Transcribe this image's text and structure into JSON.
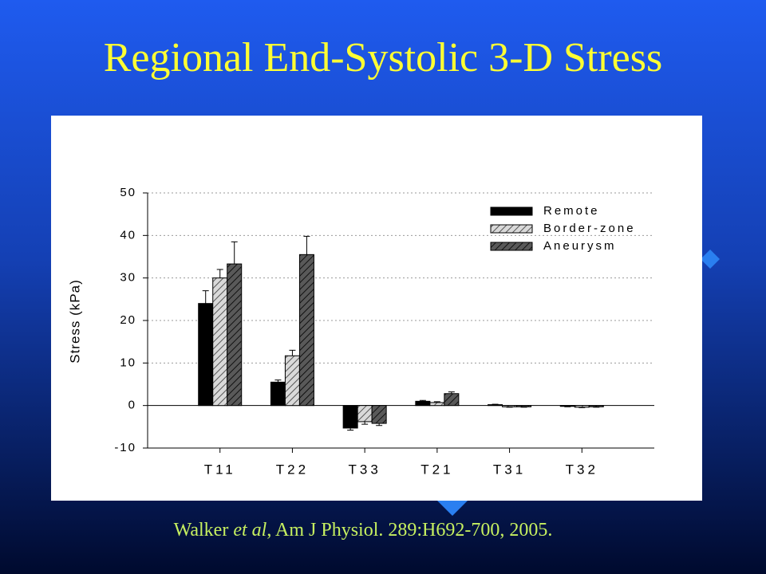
{
  "chart_data": {
    "type": "bar",
    "title": "Regional End-Systolic 3-D Stress",
    "y_label": "Stress (kPa)",
    "categories": [
      "T11",
      "T22",
      "T33",
      "T21",
      "T31",
      "T32"
    ],
    "series": [
      {
        "name": "Remote",
        "color": "#000000",
        "values": [
          24,
          5.5,
          -5.3,
          1.0,
          0.2,
          -0.2
        ],
        "errors": [
          3,
          0.5,
          0.5,
          0.2,
          0.1,
          0.1
        ]
      },
      {
        "name": "Border-zone",
        "color": "#d9d9d9",
        "pattern": "hatch",
        "values": [
          30,
          11.7,
          -3.8,
          0.7,
          -0.3,
          -0.4
        ],
        "errors": [
          2,
          1.3,
          0.6,
          0.2,
          0.1,
          0.1
        ]
      },
      {
        "name": "Aneurysm",
        "color": "#595959",
        "pattern": "hatch",
        "values": [
          33.3,
          35.5,
          -4.2,
          2.8,
          -0.3,
          -0.3
        ],
        "errors": [
          5.2,
          4.3,
          0.5,
          0.4,
          0.1,
          0.1
        ]
      }
    ],
    "ylim": [
      -10,
      50
    ],
    "yticks": [
      -10,
      0,
      10,
      20,
      30,
      40,
      50
    ],
    "grid": true,
    "legend": "top-right"
  },
  "citation": {
    "author": "Walker",
    "etal": "et al",
    "source": ", Am J Physiol. 289:H692-700, 2005."
  }
}
